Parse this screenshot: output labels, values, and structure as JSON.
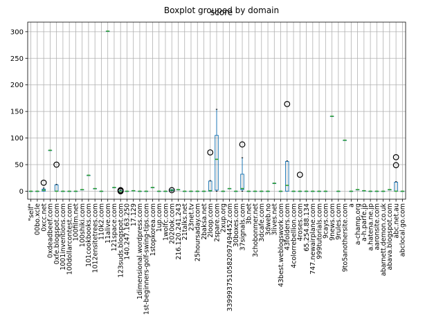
{
  "figure": {
    "suptitle": "Boxplot grouped by domain",
    "title": "score"
  },
  "chart_data": {
    "type": "box",
    "title": "score",
    "suptitle": "Boxplot grouped by domain",
    "xlabel": "",
    "ylabel": "",
    "ylim": [
      -15,
      318
    ],
    "yticks": [
      0,
      50,
      100,
      150,
      200,
      250,
      300
    ],
    "grid": true,
    "legend": "none",
    "colors": {
      "box": "#1f77b4",
      "median": "#2ca02c",
      "whisker": "#1f77b4",
      "flier": "#000000",
      "grid": "#b0b0b0"
    },
    "categories": [
      "\"self\"",
      "00bo.xcle",
      "0xcc.net",
      "0xdeadbeef.com",
      "0xfe.blogspot.com",
      "1001inventions.com",
      "100dollarcontest.com",
      "100film.net",
      "100shiki.com",
      "101cookbooks.com",
      "1012ensitetrees.com",
      "110k2.com",
      "11alive.com",
      "121space.com",
      "123suds.blogspot.com",
      "140.247.163.250",
      "17.129",
      "1dimensional.wordpress.com",
      "1st-beginners-golf-swing-tips.com",
      "1stopkorea.com",
      "1up.com",
      "1wolfc.com",
      "2020ok.com",
      "216.120.241.243",
      "21talks.net",
      "23net.tv",
      "25hoursaday.com",
      "2baksa.net",
      "2loop.com",
      "2spare.com",
      "2xup.org",
      "3399937510582097494452.com",
      "30boxes.com",
      "37signals.com",
      "3b.net",
      "3chobonmer.net",
      "3dcafe.com",
      "3dweb.no",
      "3lives.net",
      "43best.weblogswork.com",
      "43folders.com",
      "4colorrebellion.com",
      "4roses.com",
      "65.254.88.134",
      "747.newairplane.com",
      "999tutorials.com",
      "9cays.com",
      "9news.com",
      "9rules.com",
      "9to5anothersite.com",
      "a",
      "a-champ.org",
      "a-h.parfe.jp",
      "a.hatena.ne.jp",
      "aaronsite.com",
      "abarnett.demon.co.uk",
      "abava.blogspot.com",
      "abc.net.au",
      "abclocal.go.com"
    ],
    "boxes": [
      {
        "min": 0,
        "q1": 0,
        "median": 0,
        "q3": 0,
        "max": 0,
        "fliers": []
      },
      {
        "min": 0,
        "q1": 0,
        "median": 0,
        "q3": 0,
        "max": 0,
        "fliers": []
      },
      {
        "min": 0,
        "q1": 0,
        "median": 2,
        "q3": 4,
        "max": 6,
        "fliers": [
          16
        ]
      },
      {
        "min": 77,
        "q1": 77,
        "median": 77,
        "q3": 77,
        "max": 77,
        "fliers": []
      },
      {
        "min": 0,
        "q1": 0,
        "median": 0,
        "q3": 12,
        "max": 13,
        "fliers": [
          50
        ]
      },
      {
        "min": 0,
        "q1": 0,
        "median": 0,
        "q3": 0,
        "max": 0,
        "fliers": []
      },
      {
        "min": 0,
        "q1": 0,
        "median": 0,
        "q3": 0,
        "max": 0,
        "fliers": []
      },
      {
        "min": 0,
        "q1": 0,
        "median": 0,
        "q3": 0,
        "max": 0,
        "fliers": []
      },
      {
        "min": 3,
        "q1": 3,
        "median": 3,
        "q3": 3,
        "max": 3,
        "fliers": []
      },
      {
        "min": 30,
        "q1": 30,
        "median": 30,
        "q3": 30,
        "max": 30,
        "fliers": []
      },
      {
        "min": 5,
        "q1": 5,
        "median": 5,
        "q3": 5,
        "max": 5,
        "fliers": []
      },
      {
        "min": 0,
        "q1": 0,
        "median": 0,
        "q3": 0,
        "max": 0,
        "fliers": []
      },
      {
        "min": 301,
        "q1": 301,
        "median": 301,
        "q3": 301,
        "max": 301,
        "fliers": []
      },
      {
        "min": 7,
        "q1": 7,
        "median": 7,
        "q3": 7,
        "max": 7,
        "fliers": []
      },
      {
        "min": 0,
        "q1": 0,
        "median": 0,
        "q3": 1,
        "max": 2,
        "fliers": [
          0,
          1,
          2
        ]
      },
      {
        "min": 0,
        "q1": 0,
        "median": 0,
        "q3": 0,
        "max": 0,
        "fliers": []
      },
      {
        "min": 1,
        "q1": 1,
        "median": 1,
        "q3": 1,
        "max": 1,
        "fliers": []
      },
      {
        "min": 0,
        "q1": 0,
        "median": 0,
        "q3": 0,
        "max": 0,
        "fliers": []
      },
      {
        "min": 0,
        "q1": 0,
        "median": 0,
        "q3": 0,
        "max": 0,
        "fliers": []
      },
      {
        "min": 7,
        "q1": 7,
        "median": 7,
        "q3": 7,
        "max": 7,
        "fliers": []
      },
      {
        "min": 0,
        "q1": 0,
        "median": 0,
        "q3": 0,
        "max": 0,
        "fliers": []
      },
      {
        "min": 0,
        "q1": 0,
        "median": 0,
        "q3": 0,
        "max": 0,
        "fliers": []
      },
      {
        "min": 0,
        "q1": 1,
        "median": 2,
        "q3": 3,
        "max": 3,
        "fliers": [
          2
        ]
      },
      {
        "min": 3,
        "q1": 3,
        "median": 3,
        "q3": 3,
        "max": 3,
        "fliers": []
      },
      {
        "min": 0,
        "q1": 0,
        "median": 0,
        "q3": 0,
        "max": 0,
        "fliers": []
      },
      {
        "min": 0,
        "q1": 0,
        "median": 0,
        "q3": 0,
        "max": 0,
        "fliers": []
      },
      {
        "min": 0,
        "q1": 0,
        "median": 0,
        "q3": 0,
        "max": 0,
        "fliers": []
      },
      {
        "min": 0,
        "q1": 0,
        "median": 0,
        "q3": 0,
        "max": 0,
        "fliers": []
      },
      {
        "min": 0,
        "q1": 0,
        "median": 1,
        "q3": 19,
        "max": 20,
        "fliers": [
          73
        ]
      },
      {
        "min": 0,
        "q1": 2,
        "median": 60,
        "q3": 105,
        "max": 154,
        "fliers": []
      },
      {
        "min": 0,
        "q1": 0,
        "median": 0,
        "q3": 0,
        "max": 0,
        "fliers": []
      },
      {
        "min": 5,
        "q1": 5,
        "median": 5,
        "q3": 5,
        "max": 5,
        "fliers": []
      },
      {
        "min": 0,
        "q1": 0,
        "median": 0,
        "q3": 0,
        "max": 0,
        "fliers": []
      },
      {
        "min": 0,
        "q1": 3,
        "median": 5,
        "q3": 32,
        "max": 63,
        "fliers": [
          88
        ]
      },
      {
        "min": 0,
        "q1": 0,
        "median": 0,
        "q3": 0,
        "max": 0,
        "fliers": []
      },
      {
        "min": 0,
        "q1": 0,
        "median": 0,
        "q3": 0,
        "max": 0,
        "fliers": []
      },
      {
        "min": 0,
        "q1": 0,
        "median": 0,
        "q3": 0,
        "max": 0,
        "fliers": []
      },
      {
        "min": 0,
        "q1": 0,
        "median": 0,
        "q3": 0,
        "max": 0,
        "fliers": []
      },
      {
        "min": 15,
        "q1": 15,
        "median": 15,
        "q3": 15,
        "max": 15,
        "fliers": []
      },
      {
        "min": 0,
        "q1": 0,
        "median": 0,
        "q3": 0,
        "max": 0,
        "fliers": []
      },
      {
        "min": 0,
        "q1": 0,
        "median": 11,
        "q3": 56,
        "max": 57,
        "fliers": [
          164
        ]
      },
      {
        "min": 0,
        "q1": 0,
        "median": 0,
        "q3": 0,
        "max": 0,
        "fliers": []
      },
      {
        "min": 0,
        "q1": 0,
        "median": 0,
        "q3": 0,
        "max": 0,
        "fliers": [
          31
        ]
      },
      {
        "min": 0,
        "q1": 0,
        "median": 0,
        "q3": 0,
        "max": 0,
        "fliers": []
      },
      {
        "min": 0,
        "q1": 0,
        "median": 0,
        "q3": 0,
        "max": 0,
        "fliers": []
      },
      {
        "min": 0,
        "q1": 0,
        "median": 0,
        "q3": 0,
        "max": 0,
        "fliers": []
      },
      {
        "min": 0,
        "q1": 0,
        "median": 0,
        "q3": 0,
        "max": 0,
        "fliers": []
      },
      {
        "min": 141,
        "q1": 141,
        "median": 141,
        "q3": 141,
        "max": 141,
        "fliers": []
      },
      {
        "min": 0,
        "q1": 0,
        "median": 0,
        "q3": 0,
        "max": 0,
        "fliers": []
      },
      {
        "min": 96,
        "q1": 96,
        "median": 96,
        "q3": 96,
        "max": 96,
        "fliers": []
      },
      {
        "min": 0,
        "q1": 0,
        "median": 0,
        "q3": 0,
        "max": 0,
        "fliers": []
      },
      {
        "min": 3,
        "q1": 3,
        "median": 3,
        "q3": 3,
        "max": 3,
        "fliers": []
      },
      {
        "min": 1,
        "q1": 1,
        "median": 1,
        "q3": 1,
        "max": 1,
        "fliers": []
      },
      {
        "min": 0,
        "q1": 0,
        "median": 0,
        "q3": 0,
        "max": 0,
        "fliers": []
      },
      {
        "min": 0,
        "q1": 0,
        "median": 0,
        "q3": 0,
        "max": 0,
        "fliers": []
      },
      {
        "min": 0,
        "q1": 0,
        "median": 0,
        "q3": 0,
        "max": 0,
        "fliers": []
      },
      {
        "min": 3,
        "q1": 3,
        "median": 3,
        "q3": 3,
        "max": 3,
        "fliers": []
      },
      {
        "min": 0,
        "q1": 0,
        "median": 0,
        "q3": 17,
        "max": 18,
        "fliers": [
          49,
          64
        ]
      },
      {
        "min": 0,
        "q1": 0,
        "median": 0,
        "q3": 0,
        "max": 0,
        "fliers": []
      }
    ]
  }
}
